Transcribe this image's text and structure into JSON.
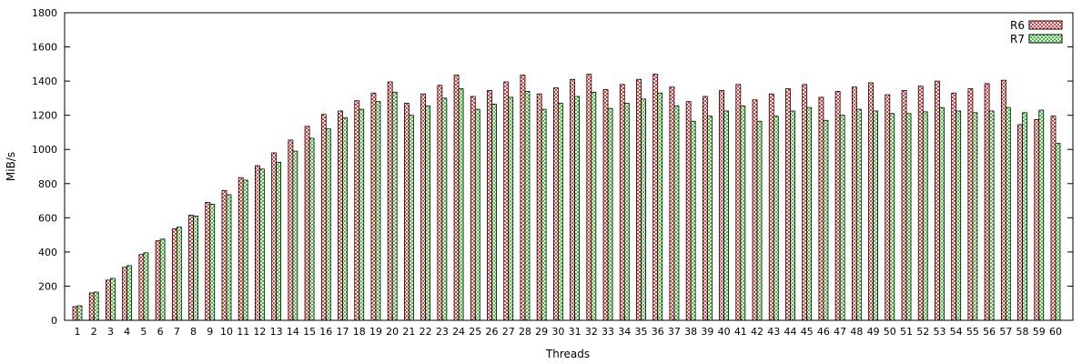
{
  "chart_data": {
    "type": "bar",
    "title": "",
    "xlabel": "Threads",
    "ylabel": "MiB/s",
    "ylim": [
      0,
      1800
    ],
    "yticks": [
      0,
      200,
      400,
      600,
      800,
      1000,
      1200,
      1400,
      1600,
      1800
    ],
    "legend_position": "top-right",
    "grid": false,
    "categories": [
      "1",
      "2",
      "3",
      "4",
      "5",
      "6",
      "7",
      "8",
      "9",
      "10",
      "11",
      "12",
      "13",
      "14",
      "15",
      "16",
      "17",
      "18",
      "19",
      "20",
      "21",
      "22",
      "23",
      "24",
      "25",
      "26",
      "27",
      "28",
      "29",
      "30",
      "31",
      "32",
      "33",
      "34",
      "35",
      "36",
      "37",
      "38",
      "39",
      "40",
      "41",
      "42",
      "43",
      "44",
      "45",
      "46",
      "47",
      "48",
      "49",
      "50",
      "51",
      "52",
      "53",
      "54",
      "55",
      "56",
      "57",
      "58",
      "59",
      "60"
    ],
    "series": [
      {
        "name": "R6",
        "color": "#ff0000",
        "fill": "#ffb0b0",
        "values": [
          80,
          160,
          235,
          310,
          385,
          465,
          535,
          615,
          690,
          760,
          835,
          905,
          980,
          1055,
          1135,
          1205,
          1225,
          1285,
          1330,
          1395,
          1270,
          1325,
          1375,
          1435,
          1310,
          1345,
          1395,
          1435,
          1325,
          1360,
          1410,
          1440,
          1350,
          1380,
          1410,
          1440,
          1365,
          1280,
          1310,
          1345,
          1380,
          1290,
          1325,
          1355,
          1380,
          1305,
          1340,
          1365,
          1390,
          1320,
          1345,
          1370,
          1400,
          1330,
          1355,
          1385,
          1405,
          1145,
          1175,
          1195
        ]
      },
      {
        "name": "R7",
        "color": "#00a000",
        "fill": "#b8f0a8",
        "values": [
          85,
          165,
          245,
          320,
          395,
          475,
          545,
          610,
          680,
          735,
          820,
          885,
          925,
          990,
          1065,
          1120,
          1185,
          1235,
          1280,
          1335,
          1200,
          1255,
          1300,
          1355,
          1235,
          1265,
          1305,
          1340,
          1235,
          1270,
          1310,
          1335,
          1240,
          1270,
          1295,
          1330,
          1255,
          1165,
          1195,
          1225,
          1255,
          1165,
          1195,
          1225,
          1245,
          1170,
          1200,
          1235,
          1225,
          1210,
          1210,
          1220,
          1245,
          1225,
          1215,
          1225,
          1245,
          1215,
          1230,
          1035
        ]
      }
    ]
  }
}
